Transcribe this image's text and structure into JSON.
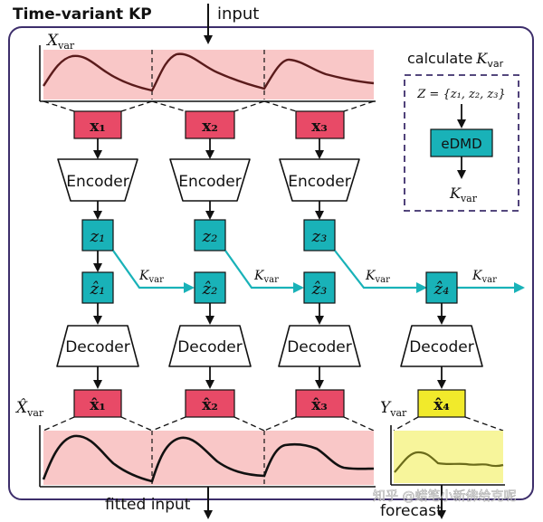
{
  "title": "Time-variant KP",
  "top_label": "input",
  "bottom_left_label": "fitted input",
  "bottom_right_label": "forecast",
  "watermark": "知乎 @蜡笔小新佛给克呢",
  "input_plot_label": "X",
  "input_plot_sub": "var",
  "output_plot_label": "X̂",
  "output_plot_sub": "var",
  "forecast_plot_label": "Y",
  "forecast_plot_sub": "var",
  "segments_in": [
    "x₁",
    "x₂",
    "x₃"
  ],
  "segments_out": [
    "x̂₁",
    "x̂₂",
    "x̂₃"
  ],
  "forecast_segment": "x̂₄",
  "encoder_label": "Encoder",
  "decoder_label": "Decoder",
  "latent": [
    "z₁",
    "z₂",
    "z₃"
  ],
  "latent_hat": [
    "ẑ₁",
    "ẑ₂",
    "ẑ₃",
    "ẑ₄"
  ],
  "koopman_label": "K",
  "koopman_sub": "var",
  "calc_box": {
    "title": "calculate",
    "title_math": "K",
    "title_sub": "var",
    "set_expr": "Z = {z₁, z₂, z₃}",
    "method": "eDMD",
    "result": "K",
    "result_sub": "var"
  },
  "colors": {
    "frame": "#3d2e6b",
    "pink_bg": "#f9c7c7",
    "segment_box": "#e84a67",
    "latent_box": "#19b2b8",
    "arrow_cyan": "#19b2b8",
    "yellow_bg": "#f7f59b",
    "forecast_box": "#f1ea2b",
    "calc_border": "#3d2e6b",
    "input_line": "#5a1b1b",
    "output_line": "#111111",
    "forecast_line": "#6b6b1a"
  }
}
